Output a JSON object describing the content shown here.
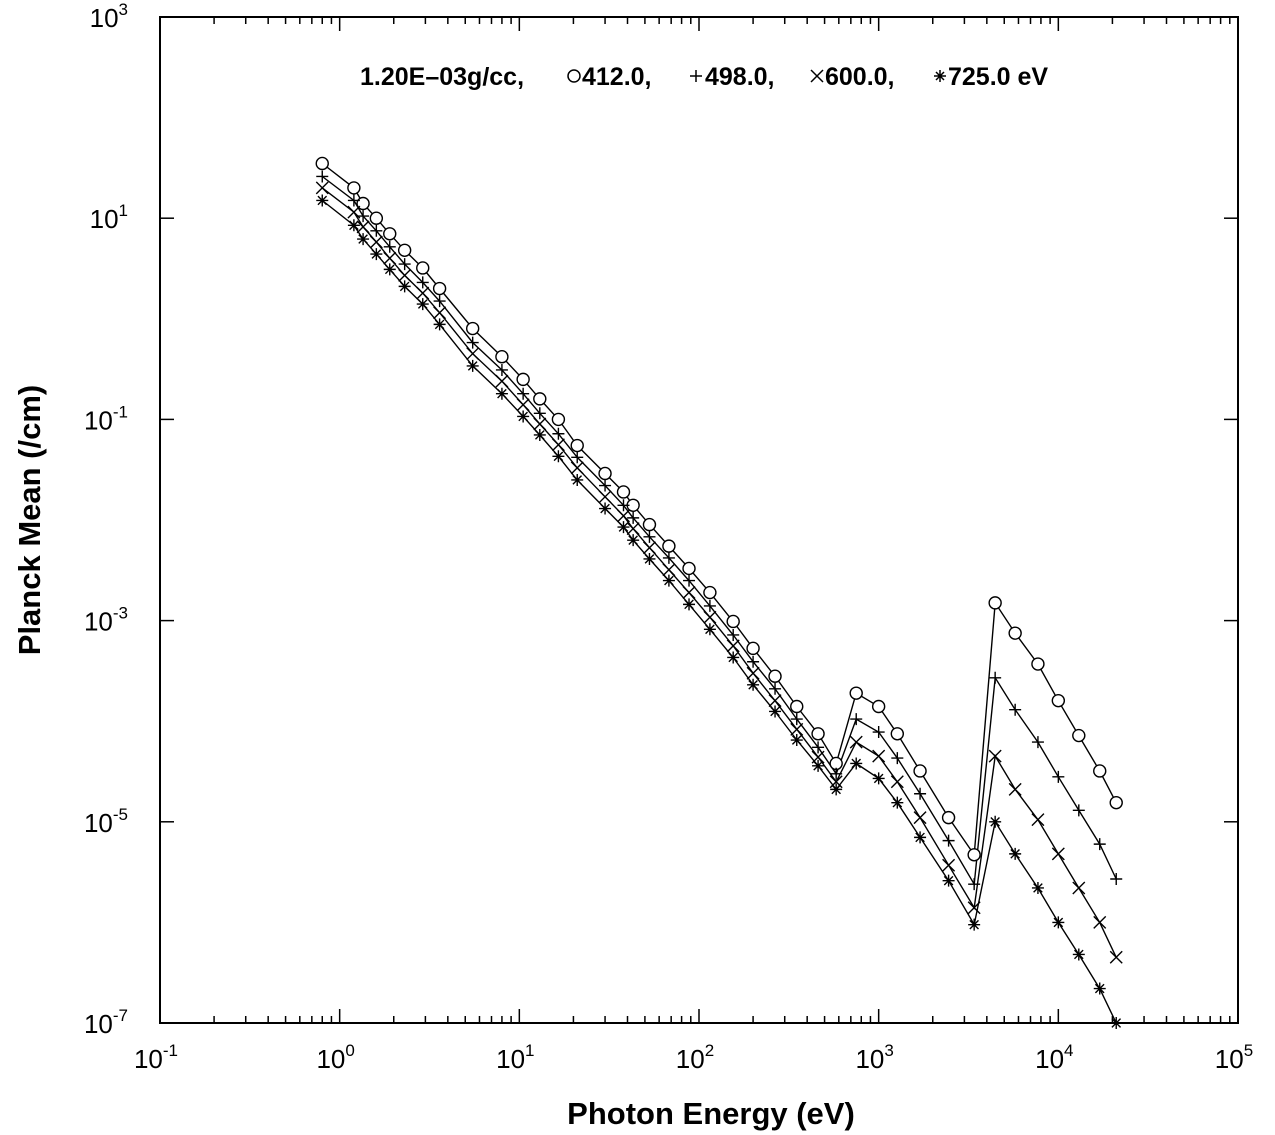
{
  "chart_data": {
    "type": "line",
    "title": "1.20E–03g/cc, ○412.0, +498.0, ×600.0, ∗725.0 eV",
    "title_parts": {
      "density": "1.20E–03g/cc,",
      "s1": "412.0,",
      "s2": "498.0,",
      "s3": "600.0,",
      "s4": "725.0 eV"
    },
    "xlabel": "Photon Energy (eV)",
    "ylabel": "Planck Mean (/cm)",
    "x_scale": "log",
    "y_scale": "log",
    "xlim": [
      0.1,
      100000
    ],
    "ylim": [
      1e-07,
      1000
    ],
    "x_ticks": [
      {
        "base": "10",
        "exp": "-1",
        "value": 0.1
      },
      {
        "base": "10",
        "exp": "0",
        "value": 1
      },
      {
        "base": "10",
        "exp": "1",
        "value": 10
      },
      {
        "base": "10",
        "exp": "2",
        "value": 100
      },
      {
        "base": "10",
        "exp": "3",
        "value": 1000
      },
      {
        "base": "10",
        "exp": "4",
        "value": 10000
      },
      {
        "base": "10",
        "exp": "5",
        "value": 100000
      }
    ],
    "y_ticks": [
      {
        "base": "10",
        "exp": "-7",
        "value": 1e-07
      },
      {
        "base": "10",
        "exp": "-5",
        "value": 1e-05
      },
      {
        "base": "10",
        "exp": "-3",
        "value": 0.001
      },
      {
        "base": "10",
        "exp": "-1",
        "value": 0.1
      },
      {
        "base": "10",
        "exp": "1",
        "value": 10
      },
      {
        "base": "10",
        "exp": "3",
        "value": 1000
      }
    ],
    "grid": false,
    "line_color": "#000000",
    "x": [
      0.8,
      1.2,
      1.35,
      1.6,
      1.9,
      2.3,
      2.9,
      3.6,
      5.5,
      8,
      10.5,
      13,
      16.5,
      21,
      30,
      38,
      43,
      53,
      68,
      88,
      115,
      155,
      200,
      265,
      350,
      460,
      580,
      750,
      1000,
      1270,
      1700,
      2450,
      3400,
      4450,
      5750,
      7700,
      10000,
      13000,
      17000,
      21000
    ],
    "series": [
      {
        "name": "412.0",
        "marker": "circle",
        "values": [
          35,
          20,
          14,
          10,
          7,
          4.8,
          3.2,
          2.0,
          0.8,
          0.42,
          0.25,
          0.16,
          0.1,
          0.055,
          0.029,
          0.019,
          0.014,
          0.009,
          0.0055,
          0.0033,
          0.0019,
          0.00098,
          0.00053,
          0.00028,
          0.00014,
          7.5e-05,
          3.8e-05,
          0.00019,
          0.00014,
          7.5e-05,
          3.2e-05,
          1.1e-05,
          4.7e-06,
          0.0015,
          0.00075,
          0.00037,
          0.00016,
          7.2e-05,
          3.2e-05,
          1.55e-05
        ]
      },
      {
        "name": "498.0",
        "marker": "plus",
        "values": [
          26,
          15,
          10.5,
          7.5,
          5.2,
          3.5,
          2.3,
          1.5,
          0.58,
          0.31,
          0.18,
          0.115,
          0.072,
          0.042,
          0.022,
          0.014,
          0.0105,
          0.0068,
          0.0042,
          0.0025,
          0.0014,
          0.00072,
          0.00039,
          0.00021,
          0.000105,
          5.5e-05,
          3e-05,
          0.000105,
          7.8e-05,
          4.3e-05,
          1.9e-05,
          6.5e-06,
          2.4e-06,
          0.00027,
          0.00013,
          6.2e-05,
          2.8e-05,
          1.3e-05,
          6e-06,
          2.7e-06
        ]
      },
      {
        "name": "600.0",
        "marker": "cross",
        "values": [
          20,
          11.5,
          8.2,
          5.8,
          4.0,
          2.7,
          1.8,
          1.15,
          0.45,
          0.24,
          0.14,
          0.09,
          0.056,
          0.033,
          0.017,
          0.011,
          0.0082,
          0.0053,
          0.0032,
          0.0019,
          0.00108,
          0.00056,
          0.0003,
          0.00016,
          8.3e-05,
          4.4e-05,
          2.5e-05,
          6.2e-05,
          4.5e-05,
          2.5e-05,
          1.1e-05,
          3.7e-06,
          1.4e-06,
          4.5e-05,
          2.1e-05,
          1.05e-05,
          4.8e-06,
          2.2e-06,
          1e-06,
          4.5e-07
        ]
      },
      {
        "name": "725.0",
        "marker": "asterisk",
        "values": [
          15,
          8.5,
          6.2,
          4.4,
          3.1,
          2.1,
          1.4,
          0.88,
          0.34,
          0.18,
          0.107,
          0.07,
          0.043,
          0.025,
          0.013,
          0.0085,
          0.0063,
          0.0041,
          0.0025,
          0.00145,
          0.00082,
          0.00043,
          0.00023,
          0.000125,
          6.5e-05,
          3.6e-05,
          2.1e-05,
          3.8e-05,
          2.7e-05,
          1.55e-05,
          7e-06,
          2.6e-06,
          9.5e-07,
          1e-05,
          4.8e-06,
          2.2e-06,
          1e-06,
          4.8e-07,
          2.2e-07,
          1e-07
        ]
      }
    ]
  }
}
